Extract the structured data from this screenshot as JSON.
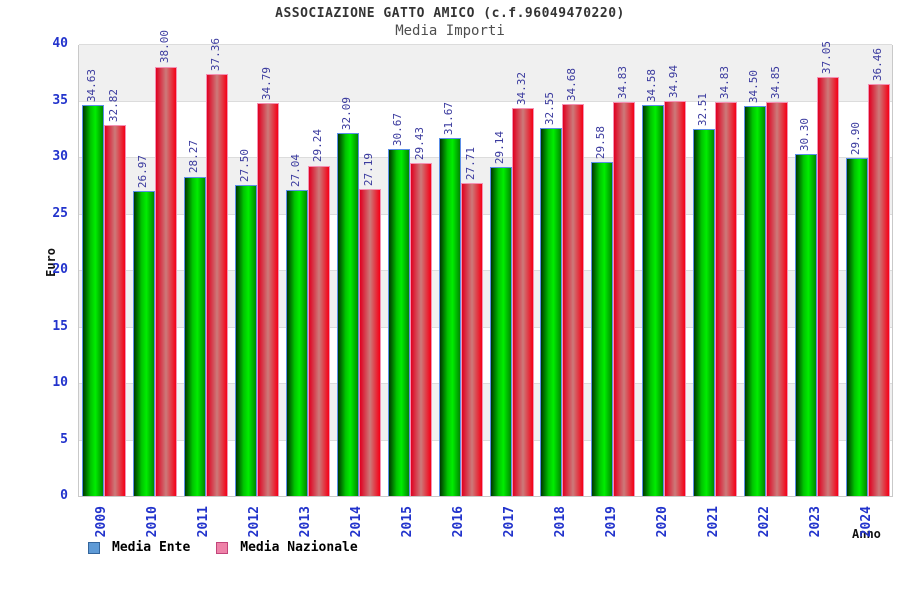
{
  "header": {
    "title": "ASSOCIAZIONE GATTO AMICO (c.f.96049470220)",
    "subtitle": "Media Importi"
  },
  "axes": {
    "y_label": "Euro",
    "x_label": "Anno",
    "y_tick_labels": [
      "0",
      "5",
      "10",
      "15",
      "20",
      "25",
      "30",
      "35",
      "40"
    ]
  },
  "legend": {
    "items": [
      {
        "label": "Media Ente",
        "swatch_fill": "#5e9ad6",
        "swatch_border": "#34659c"
      },
      {
        "label": "Media Nazionale",
        "swatch_fill": "#ee82a8",
        "swatch_border": "#c2457a"
      }
    ]
  },
  "chart_data": {
    "type": "bar",
    "title": "ASSOCIAZIONE GATTO AMICO (c.f.96049470220)",
    "subtitle": "Media Importi",
    "xlabel": "Anno",
    "ylabel": "Euro",
    "ylim": [
      0,
      40
    ],
    "y_tick_step": 5,
    "grid": "horizontal-bands",
    "legend_position": "bottom-left",
    "categories": [
      "2009",
      "2010",
      "2011",
      "2012",
      "2013",
      "2014",
      "2015",
      "2016",
      "2017",
      "2018",
      "2019",
      "2020",
      "2021",
      "2022",
      "2023",
      "2024"
    ],
    "series": [
      {
        "name": "Media Ente",
        "values": [
          34.63,
          26.97,
          28.27,
          27.5,
          27.04,
          32.09,
          30.67,
          31.67,
          29.14,
          32.55,
          29.58,
          34.58,
          32.51,
          34.5,
          30.3,
          29.9
        ]
      },
      {
        "name": "Media Nazionale",
        "values": [
          32.82,
          38.0,
          37.36,
          34.79,
          29.24,
          27.19,
          29.43,
          27.71,
          34.32,
          34.68,
          34.83,
          34.94,
          34.83,
          34.85,
          37.05,
          36.46
        ]
      }
    ]
  },
  "colors": {
    "band_gray": "#f0f0f0",
    "band_white": "#ffffff",
    "tick_text": "#2233cc",
    "value_text": "#3a3a9e",
    "green_edge_dark": "#003800",
    "green_mid": "#00c400",
    "green_bright": "#00ee00",
    "green_right": "#008800",
    "green_border": "#5c8fe8",
    "red_edge_left": "#e00020",
    "red_center": "#cc7a7a",
    "red_edge_right": "#f50016",
    "red_border": "#f492b4"
  }
}
